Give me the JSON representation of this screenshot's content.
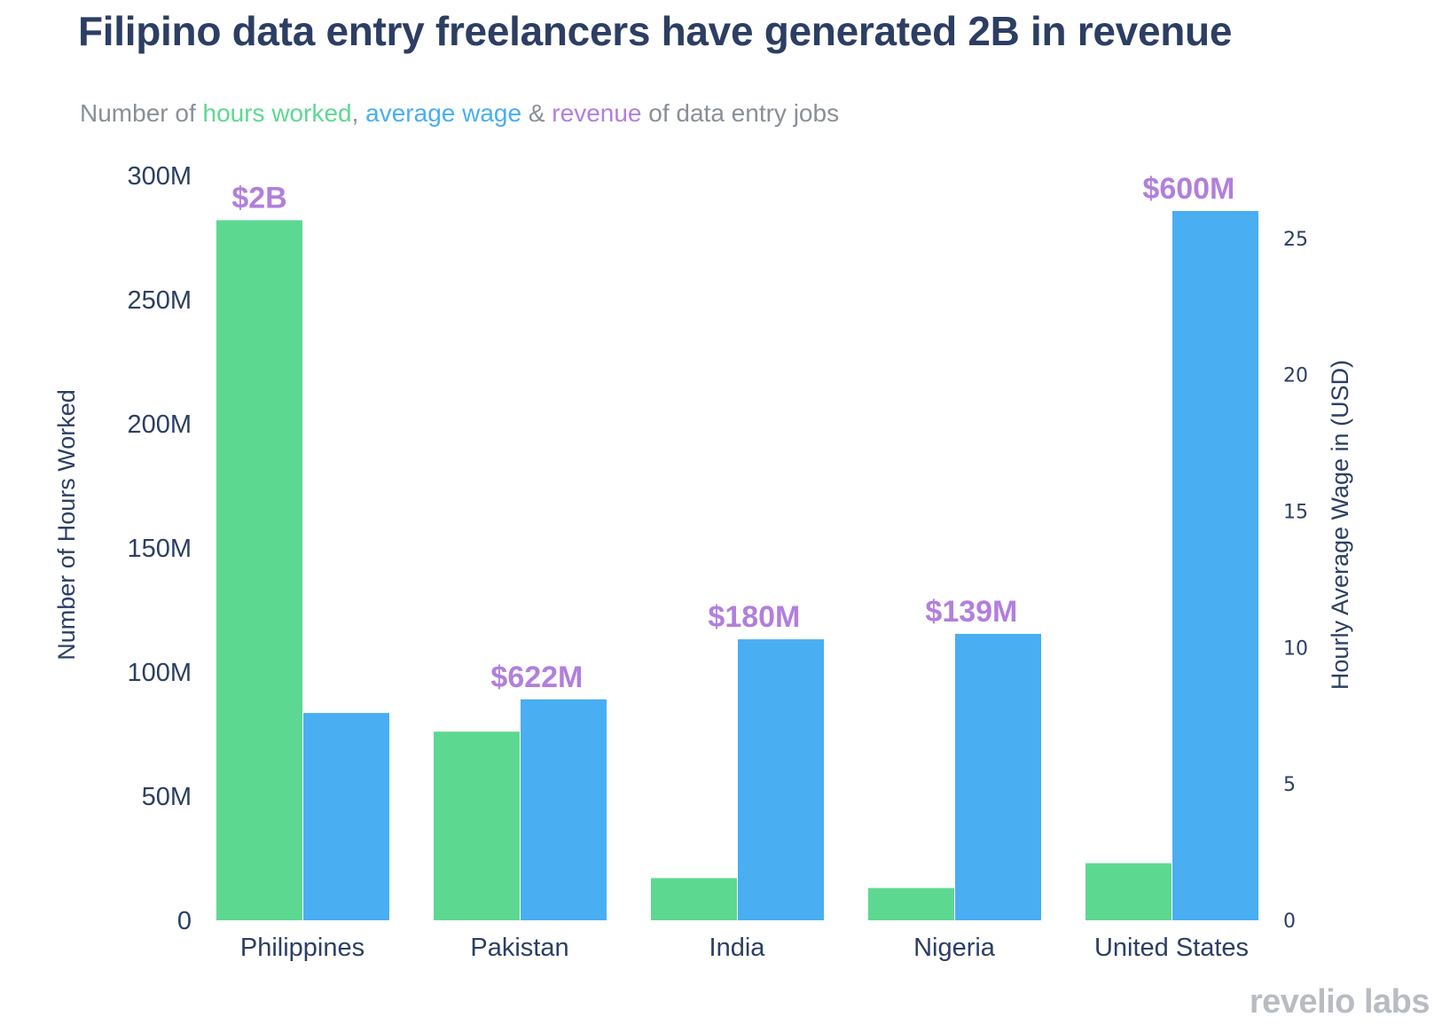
{
  "title": "Filipino data entry freelancers have generated 2B in revenue",
  "subtitle": {
    "prefix": "Number of ",
    "hours": "hours worked",
    "sep1": ", ",
    "wage": "average wage",
    "sep2": " & ",
    "revenue": "revenue",
    "suffix": " of data entry jobs"
  },
  "logo": "revelio labs",
  "colors": {
    "hours": "#5dd891",
    "wage": "#49aef2",
    "revenue": "#b27fdc",
    "text": "#2c3e63"
  },
  "chart_data": {
    "type": "bar",
    "title": "Filipino data entry freelancers have generated 2B in revenue",
    "categories": [
      "Philippines",
      "Pakistan",
      "India",
      "Nigeria",
      "United States"
    ],
    "series": [
      {
        "name": "hours worked",
        "axis": "left",
        "values": [
          282,
          76,
          17,
          13,
          23
        ],
        "unit": "M"
      },
      {
        "name": "average wage",
        "axis": "right",
        "values": [
          7.6,
          8.1,
          10.3,
          10.5,
          26.0
        ],
        "unit": "USD"
      }
    ],
    "revenue_labels": [
      "$2B",
      "$622M",
      "$180M",
      "$139M",
      "$600M"
    ],
    "ylabel": "Number of Hours Worked",
    "ylabel_right": "Hourly Average Wage in  (USD)",
    "ylim": [
      0,
      300
    ],
    "ylim_right": [
      0,
      27.3
    ],
    "yticks": [
      0,
      50,
      100,
      150,
      200,
      250,
      300
    ],
    "yticklabels": [
      "0",
      "50M",
      "100M",
      "150M",
      "200M",
      "250M",
      "300M"
    ],
    "yticks_right": [
      0,
      5,
      10,
      15,
      20,
      25
    ],
    "yticklabels_right": [
      "0",
      "5",
      "10",
      "15",
      "20",
      "25"
    ],
    "grid": false
  }
}
